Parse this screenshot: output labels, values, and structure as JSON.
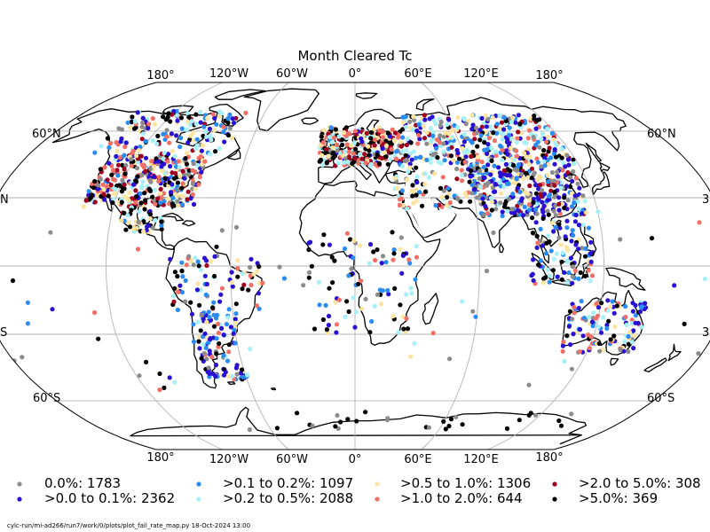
{
  "title": "Month Cleared Tc",
  "lon_labels": [
    "180°",
    "120°W",
    "60°W",
    "0°",
    "60°E",
    "120°E",
    "180°"
  ],
  "lat_labels": {
    "n60": "60°N",
    "s60": "60°S",
    "n30_left": "N",
    "s30_left": "S",
    "n30_right": "3",
    "s30_right": "3"
  },
  "legend": [
    {
      "label": "0.0%: 1783",
      "color": "#8c8c8c"
    },
    {
      "label": ">0.0 to 0.1%: 2362",
      "color": "#2a10d0"
    },
    {
      "label": ">0.1 to 0.2%: 1097",
      "color": "#2a8cf0"
    },
    {
      "label": ">0.2 to 0.5%: 2088",
      "color": "#a8f0f8"
    },
    {
      "label": ">0.5 to 1.0%: 1306",
      "color": "#fde4a0"
    },
    {
      "label": ">1.0 to 2.0%: 644",
      "color": "#f07068"
    },
    {
      "label": ">2.0 to 5.0%: 308",
      "color": "#a00020"
    },
    {
      "label": ">5.0%: 369",
      "color": "#000000"
    }
  ],
  "footer": "cylc-run/mi-ad266/run7/work/0/plots/plot_fail_rate_map.py   18-Oct-2024 13:00"
}
